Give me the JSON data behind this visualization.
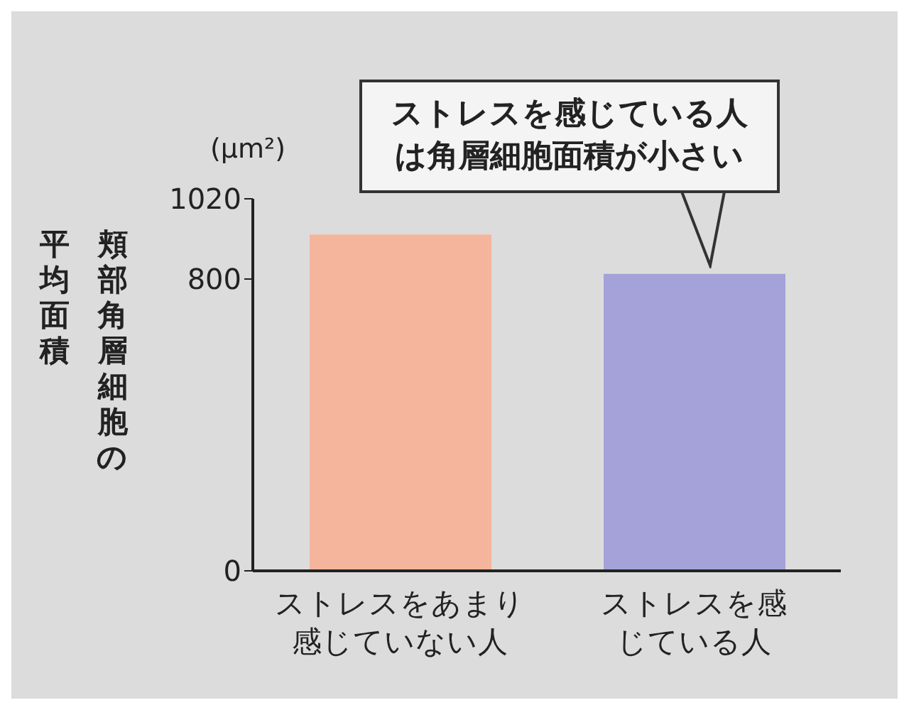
{
  "chart_data": {
    "type": "bar",
    "ylabel": "頬部角層細胞の平均面積",
    "categories": [
      "ストレスをあまり感じていない人",
      "ストレスを感じている人"
    ],
    "values": [
      922,
      814
    ],
    "colors": [
      "#f5b59c",
      "#a4a2d8"
    ],
    "ylim": [
      0,
      1020
    ],
    "yticks": [
      0,
      800,
      1020
    ],
    "annotations": [
      "(μm²)",
      "ストレスを感じている人は角層細胞面積が小さい"
    ]
  }
}
